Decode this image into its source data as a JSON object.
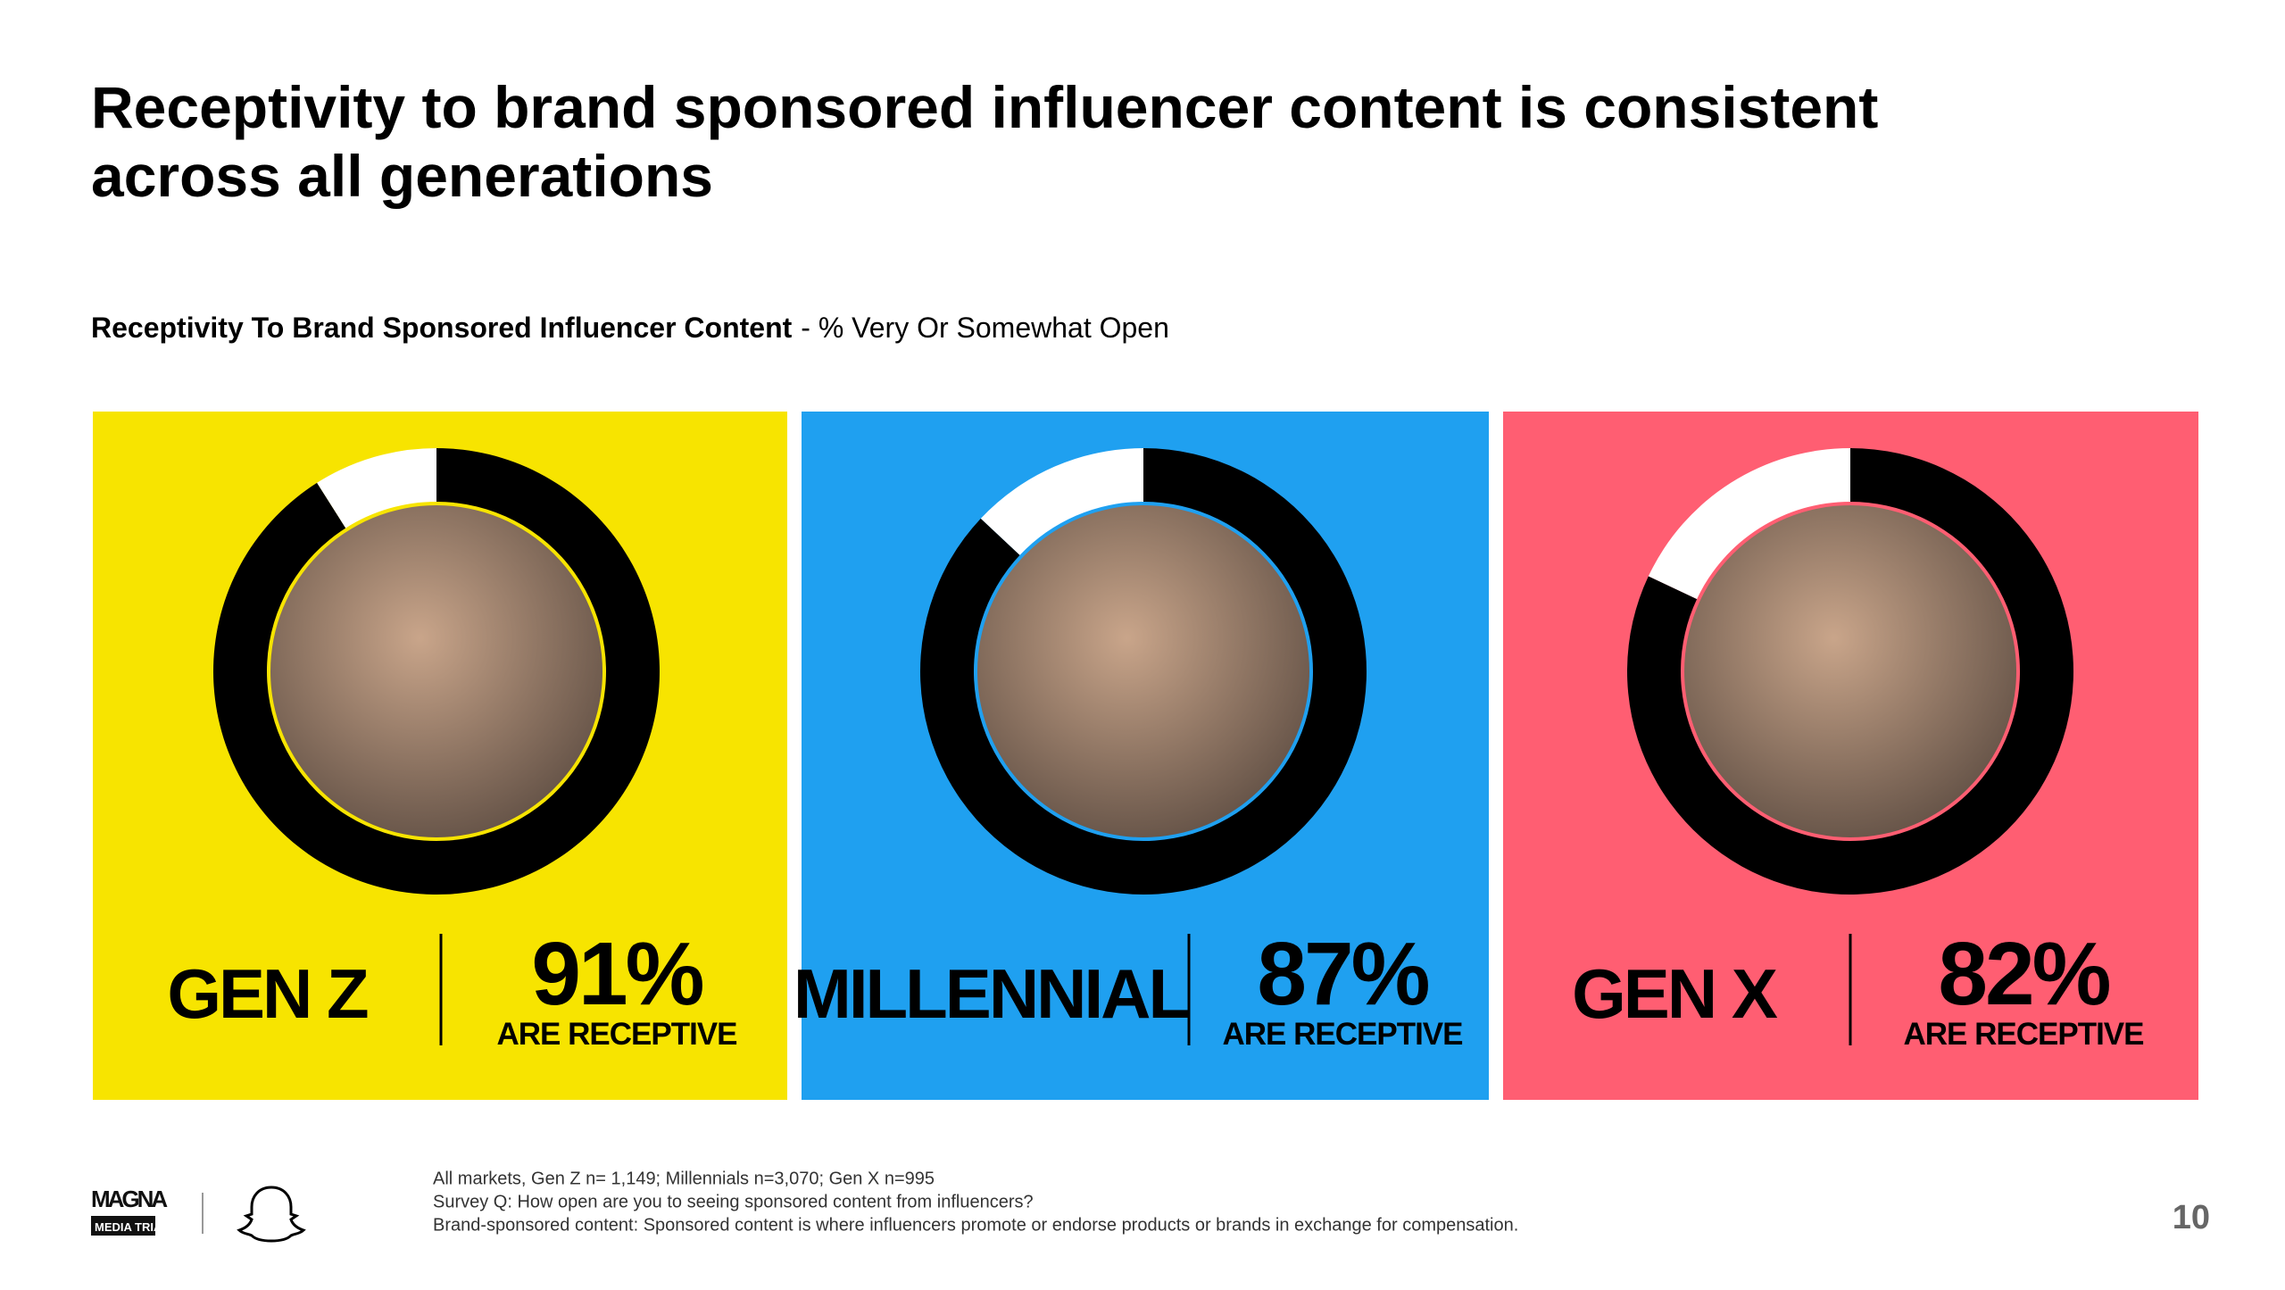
{
  "header": {
    "title_lines": [
      "Receptivity to brand sponsored influencer content is consistent",
      "across all generations"
    ],
    "subtitle_bold": "Receptivity To Brand Sponsored Influencer Content",
    "subtitle_rest": "- % Very Or Somewhat Open"
  },
  "chart_data": [
    {
      "type": "donut",
      "label": "GEN Z",
      "values": [
        91
      ],
      "value_labels": [
        "91%"
      ],
      "caption": "ARE RECEPTIVE",
      "color": "#000000",
      "background": "#f7e400"
    },
    {
      "type": "donut",
      "label": "MILLENNIAL",
      "values": [
        87
      ],
      "value_labels": [
        "87%"
      ],
      "caption": "ARE RECEPTIVE",
      "color": "#000000",
      "background": "#1fa0f0"
    },
    {
      "type": "donut",
      "label": "GEN X",
      "values": [
        82
      ],
      "value_labels": [
        "82%"
      ],
      "caption": "ARE RECEPTIVE",
      "color": "#000000",
      "background": "#ff5e72"
    }
  ],
  "footer": {
    "notes": [
      "All markets, Gen Z n= 1,149; Millennials n=3,070; Gen X n=995",
      "Survey Q: How open are you to seeing sponsored content from influencers?",
      "Brand-sponsored content: Sponsored content is where influencers promote or endorse products or brands in exchange for compensation."
    ],
    "logo_top": "MAGNA",
    "logo_bottom": "MEDIA TRIALS",
    "page_number": "10"
  }
}
